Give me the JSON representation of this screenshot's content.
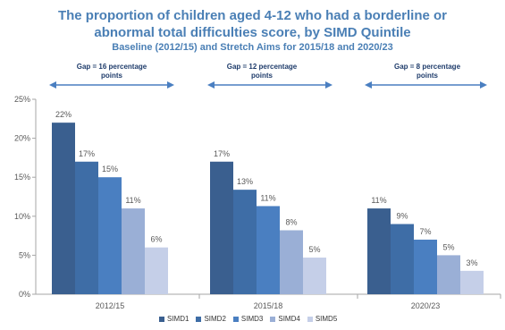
{
  "chart_data": {
    "type": "bar",
    "title": "The proportion of children aged 4-12 who had a borderline or abnormal total difficulties score, by SIMD Quintile",
    "title_line1": "The proportion of children aged 4-12 who had a borderline or",
    "title_line2": "abnormal total difficulties score, by SIMD Quintile",
    "subtitle": "Baseline (2012/15) and Stretch Aims for 2015/18 and 2020/23",
    "categories": [
      "2012/15",
      "2015/18",
      "2020/23"
    ],
    "series": [
      {
        "name": "SIMD1",
        "color": "#3a5f8f",
        "values": [
          22,
          17,
          11
        ],
        "labels": [
          "22%",
          "17%",
          "11%"
        ]
      },
      {
        "name": "SIMD2",
        "color": "#3e6da6",
        "values": [
          17,
          13.4,
          9
        ],
        "labels": [
          "17%",
          "13%",
          "9%"
        ]
      },
      {
        "name": "SIMD3",
        "color": "#4a7fc1",
        "values": [
          15,
          11.3,
          7
        ],
        "labels": [
          "15%",
          "11%",
          "7%"
        ]
      },
      {
        "name": "SIMD4",
        "color": "#9aafd6",
        "values": [
          11,
          8.2,
          5
        ],
        "labels": [
          "11%",
          "8%",
          "5%"
        ]
      },
      {
        "name": "SIMD5",
        "color": "#c5cfe8",
        "values": [
          6,
          4.7,
          3
        ],
        "labels": [
          "6%",
          "5%",
          "3%"
        ]
      }
    ],
    "ylim": [
      0,
      25
    ],
    "yticks": [
      "0%",
      "5%",
      "10%",
      "15%",
      "20%",
      "25%"
    ],
    "gridlines": false,
    "legend_position": "bottom",
    "gap_annotations": [
      "Gap = 16 percentage points",
      "Gap = 12 percentage points",
      "Gap = 8 percentage points"
    ],
    "gap_annotation_lines": [
      [
        "Gap = 16 percentage",
        "points"
      ],
      [
        "Gap = 12 percentage",
        "points"
      ],
      [
        "Gap = 8 percentage",
        "points"
      ]
    ],
    "arrow_color": "#4a7fc1"
  }
}
